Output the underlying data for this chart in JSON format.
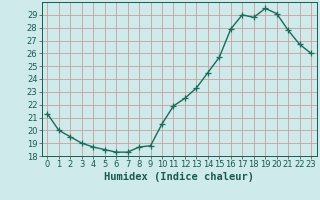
{
  "x": [
    0,
    1,
    2,
    3,
    4,
    5,
    6,
    7,
    8,
    9,
    10,
    11,
    12,
    13,
    14,
    15,
    16,
    17,
    18,
    19,
    20,
    21,
    22,
    23
  ],
  "y": [
    21.3,
    20.0,
    19.5,
    19.0,
    18.7,
    18.5,
    18.3,
    18.3,
    18.7,
    18.8,
    20.5,
    21.9,
    22.5,
    23.3,
    24.5,
    25.7,
    27.9,
    29.0,
    28.8,
    29.5,
    29.1,
    27.8,
    26.7,
    26.0
  ],
  "line_color": "#1a6b5a",
  "marker": "+",
  "marker_size": 4,
  "line_width": 1.0,
  "xlabel": "Humidex (Indice chaleur)",
  "xlim": [
    -0.5,
    23.5
  ],
  "ylim": [
    18,
    30
  ],
  "yticks": [
    18,
    19,
    20,
    21,
    22,
    23,
    24,
    25,
    26,
    27,
    28,
    29
  ],
  "xticks": [
    0,
    1,
    2,
    3,
    4,
    5,
    6,
    7,
    8,
    9,
    10,
    11,
    12,
    13,
    14,
    15,
    16,
    17,
    18,
    19,
    20,
    21,
    22,
    23
  ],
  "bg_color": "#ceeaea",
  "grid_color": "#c8a0a0",
  "tick_color": "#1a5a50",
  "label_fontsize": 7.5,
  "tick_fontsize": 6
}
